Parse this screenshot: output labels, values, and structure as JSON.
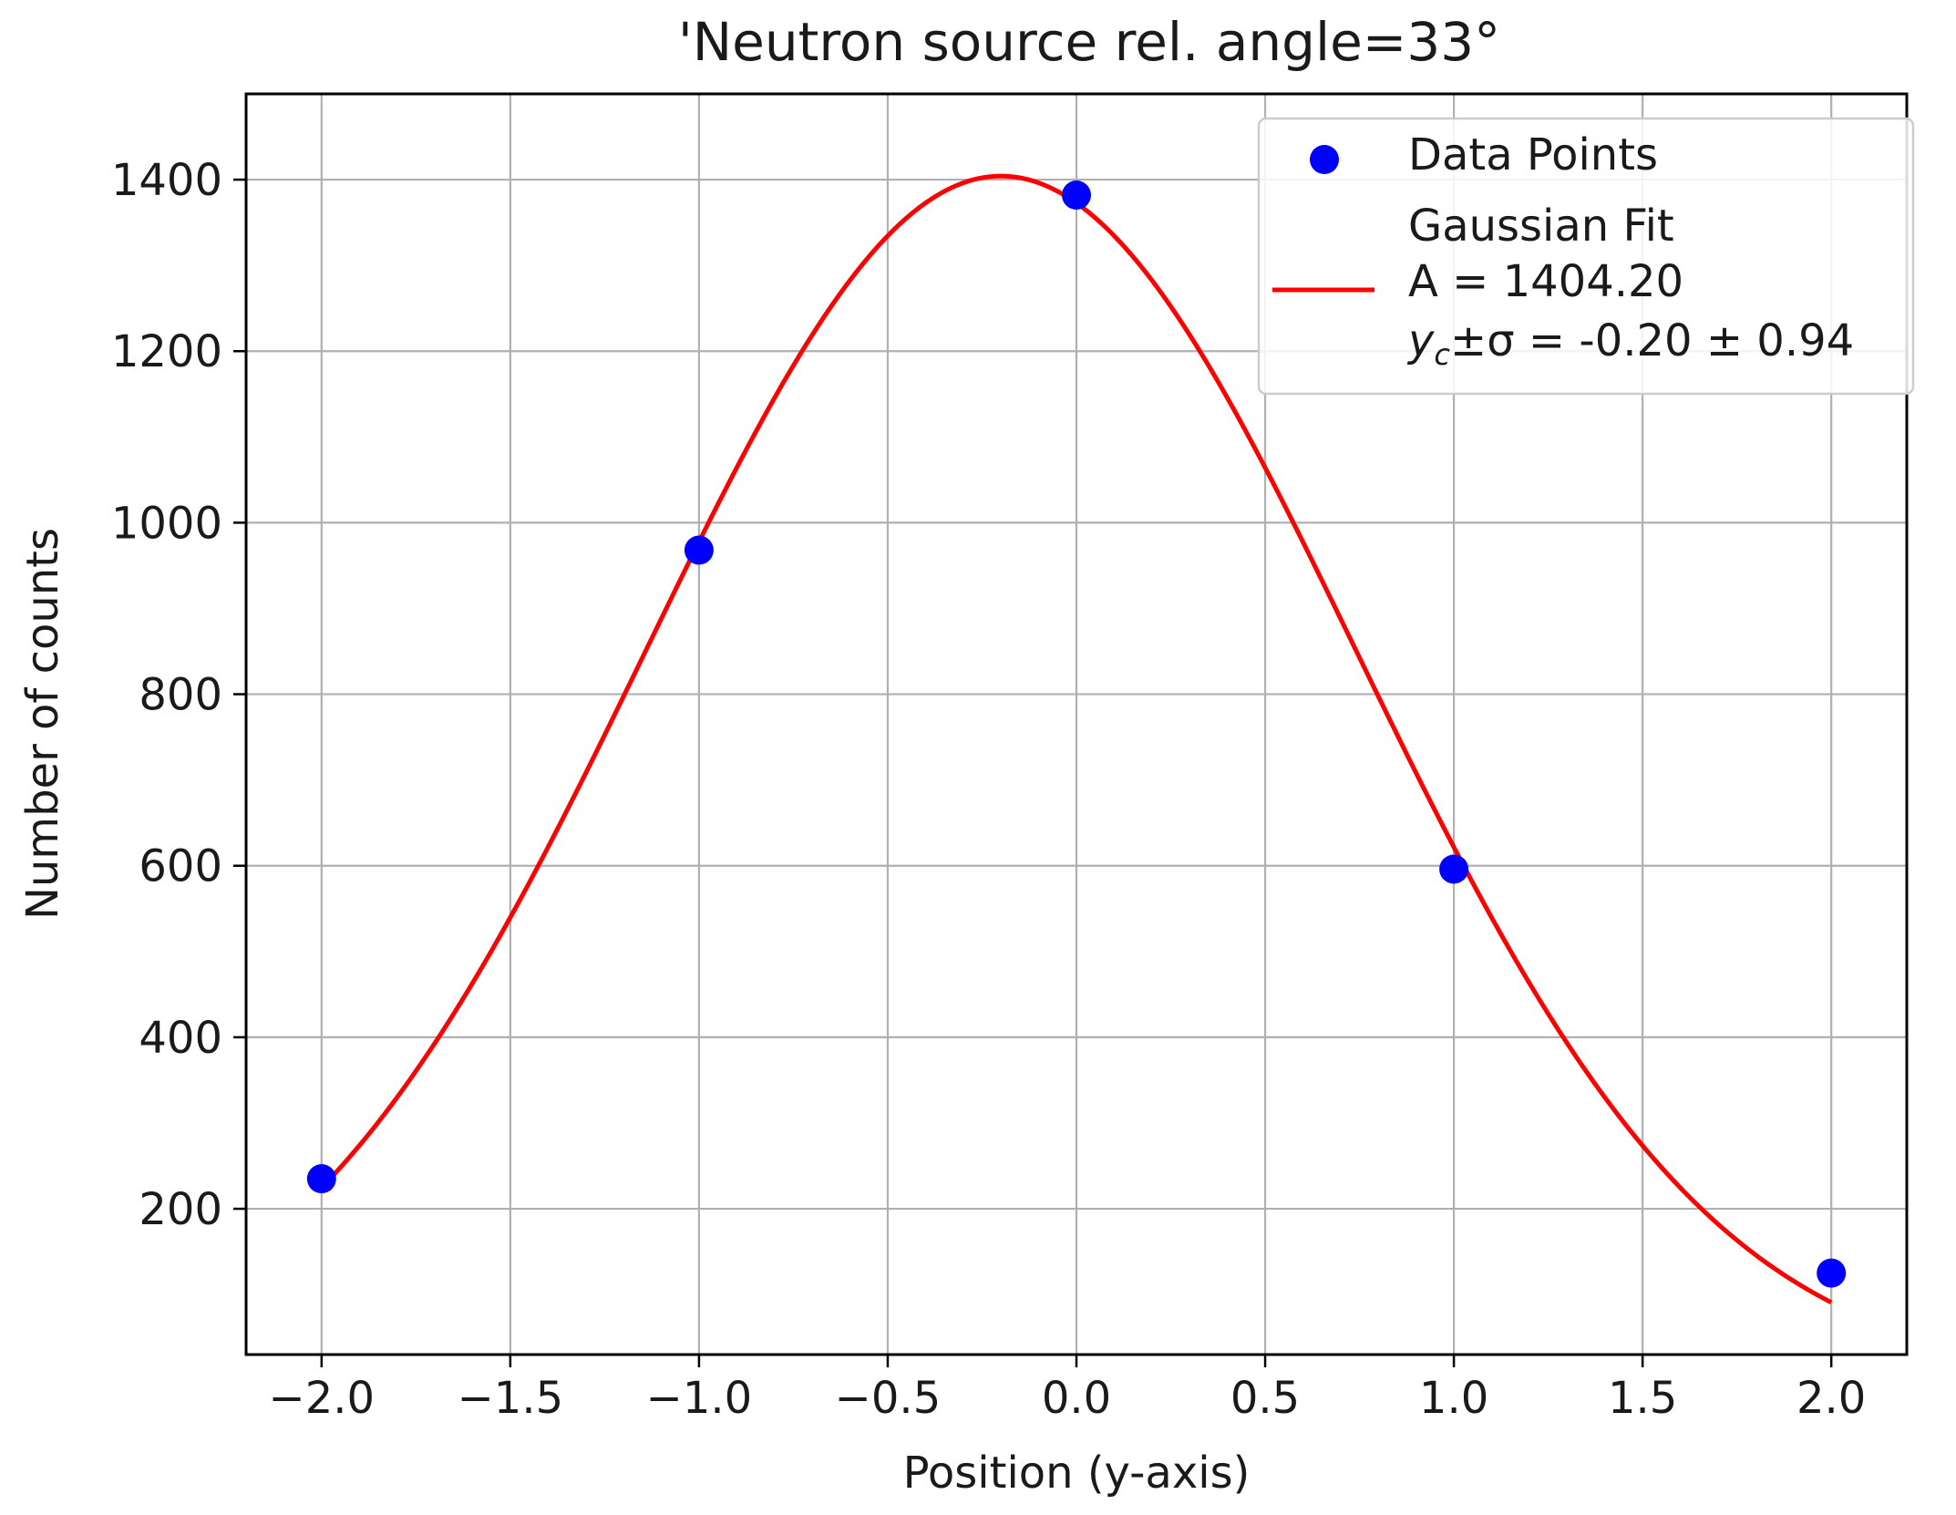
{
  "chart_data": {
    "type": "scatter",
    "title": "'Neutron source rel. angle=33°",
    "xlabel": "Position (y-axis)",
    "ylabel": "Number of counts",
    "xlim": [
      -2.2,
      2.2
    ],
    "ylim": [
      30,
      1500
    ],
    "xticks": [
      -2.0,
      -1.5,
      -1.0,
      -0.5,
      0.0,
      0.5,
      1.0,
      1.5,
      2.0
    ],
    "xtick_labels": [
      "−2.0",
      "−1.5",
      "−1.0",
      "−0.5",
      "0.0",
      "0.5",
      "1.0",
      "1.5",
      "2.0"
    ],
    "yticks": [
      200,
      400,
      600,
      800,
      1000,
      1200,
      1400
    ],
    "ytick_labels": [
      "200",
      "400",
      "600",
      "800",
      "1000",
      "1200",
      "1400"
    ],
    "grid": true,
    "legend_position": "top-right",
    "series": [
      {
        "name": "Data Points",
        "kind": "scatter",
        "color": "#0000ff",
        "x": [
          -2.0,
          -1.0,
          0.0,
          1.0,
          2.0
        ],
        "y": [
          235,
          968,
          1382,
          596,
          125
        ]
      },
      {
        "name": "Gaussian Fit",
        "kind": "line",
        "color": "#ff0000",
        "model": "gaussian",
        "amplitude": 1404.2,
        "center": -0.2,
        "sigma": 0.94,
        "x_range": [
          -2.0,
          2.0
        ]
      }
    ],
    "legend": {
      "scatter_label": "Data Points",
      "fit_label_lines": [
        "Gaussian Fit",
        "A = 1404.20"
      ],
      "fit_param_prefix_var": "y",
      "fit_param_prefix_sub": "c",
      "fit_param_rest": "±σ = -0.20 ± 0.94"
    }
  }
}
